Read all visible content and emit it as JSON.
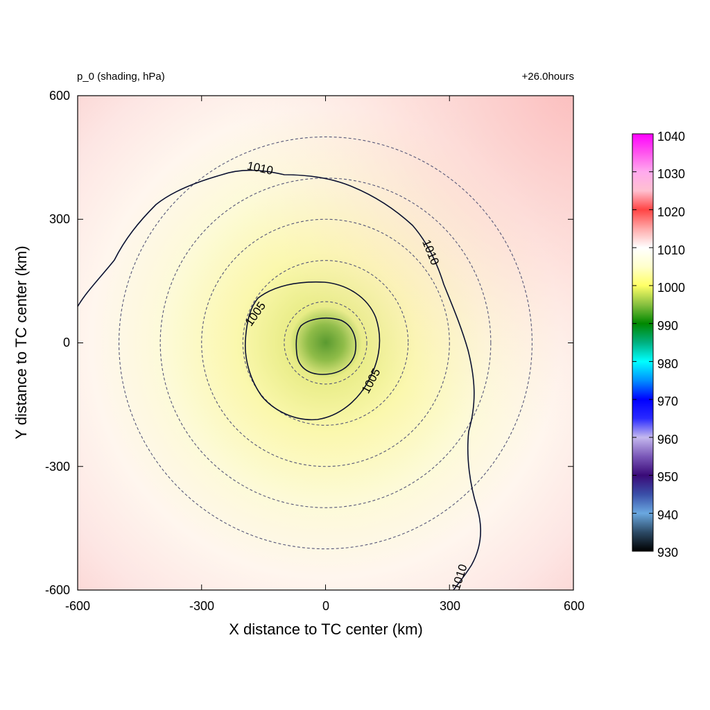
{
  "header": {
    "title_left": "p_0 (shading, hPa)",
    "title_right": "+26.0hours"
  },
  "chart_data": {
    "type": "heatmap",
    "variable": "p_0",
    "units": "hPa",
    "title": "p_0 (shading, hPa)",
    "time_label": "+26.0hours",
    "xlabel": "X distance to TC center (km)",
    "ylabel": "Y distance to TC center (km)",
    "xlim": [
      -600,
      600
    ],
    "ylim": [
      -600,
      600
    ],
    "xticks": [
      -600,
      -300,
      0,
      300,
      600
    ],
    "yticks": [
      -600,
      -300,
      0,
      300,
      600
    ],
    "center_pressure": 996,
    "field_description_points": [
      {
        "x": 0,
        "y": 0,
        "value": 996
      },
      {
        "x": -150,
        "y": 0,
        "value": 1004
      },
      {
        "x": -350,
        "y": 0,
        "value": 1007
      },
      {
        "x": 0,
        "y": -400,
        "value": 1008
      },
      {
        "x": 550,
        "y": 550,
        "value": 1018
      },
      {
        "x": 550,
        "y": -550,
        "value": 1012
      },
      {
        "x": -550,
        "y": 550,
        "value": 1012
      }
    ],
    "contours": [
      {
        "level": 1005,
        "label": "1005"
      },
      {
        "level": 1010,
        "label": "1010"
      }
    ],
    "contour_labels": [
      "1010",
      "1010",
      "1005",
      "1005",
      "1010"
    ],
    "range_rings_km": [
      100,
      200,
      300,
      400,
      500
    ],
    "colorbar": {
      "min": 930,
      "max": 1040,
      "ticks": [
        "1040",
        "1030",
        "1020",
        "1010",
        "1000",
        "990",
        "980",
        "970",
        "960",
        "950",
        "940",
        "930"
      ],
      "stops": [
        {
          "value": 930,
          "color": "#000000"
        },
        {
          "value": 935,
          "color": "#2c4a66"
        },
        {
          "value": 940,
          "color": "#6aa8e0"
        },
        {
          "value": 945,
          "color": "#3a4fa8"
        },
        {
          "value": 950,
          "color": "#3a0a78"
        },
        {
          "value": 955,
          "color": "#7a58b8"
        },
        {
          "value": 960,
          "color": "#c4b8ee"
        },
        {
          "value": 965,
          "color": "#2a2aff"
        },
        {
          "value": 970,
          "color": "#0000ff"
        },
        {
          "value": 975,
          "color": "#0090ff"
        },
        {
          "value": 980,
          "color": "#00ffff"
        },
        {
          "value": 985,
          "color": "#00b080"
        },
        {
          "value": 990,
          "color": "#008800"
        },
        {
          "value": 995,
          "color": "#88c040"
        },
        {
          "value": 1000,
          "color": "#ffff66"
        },
        {
          "value": 1005,
          "color": "#ffffcc"
        },
        {
          "value": 1010,
          "color": "#ffffff"
        },
        {
          "value": 1015,
          "color": "#ffaaaa"
        },
        {
          "value": 1020,
          "color": "#ff4444"
        },
        {
          "value": 1025,
          "color": "#ffc0d0"
        },
        {
          "value": 1030,
          "color": "#ffaaee"
        },
        {
          "value": 1035,
          "color": "#ff55ee"
        },
        {
          "value": 1040,
          "color": "#ff00ff"
        }
      ]
    },
    "colors": {
      "contour": "#0a1030",
      "rings": "#555577"
    }
  }
}
